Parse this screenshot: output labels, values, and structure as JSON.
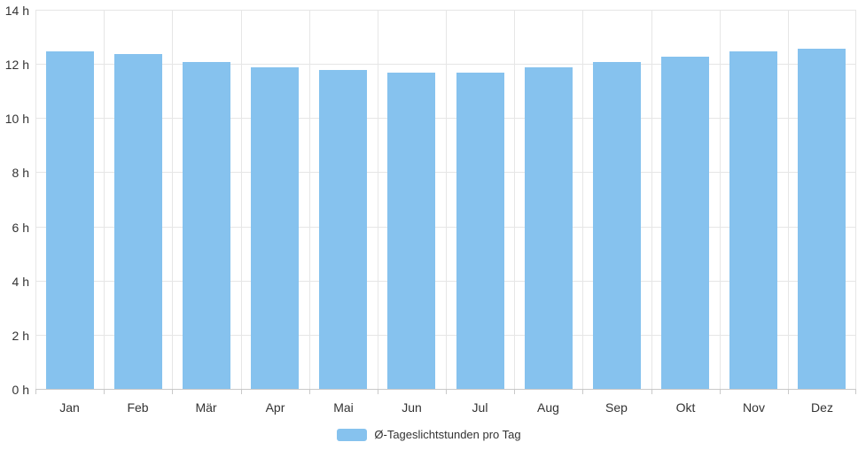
{
  "chart_data": {
    "type": "bar",
    "title": "",
    "xlabel": "",
    "ylabel": "",
    "categories": [
      "Jan",
      "Feb",
      "Mär",
      "Apr",
      "Mai",
      "Jun",
      "Jul",
      "Aug",
      "Sep",
      "Okt",
      "Nov",
      "Dez"
    ],
    "values": [
      12.5,
      12.4,
      12.1,
      11.9,
      11.8,
      11.7,
      11.7,
      11.9,
      12.1,
      12.3,
      12.5,
      12.6
    ],
    "series_name": "Ø-Tageslichtstunden pro Tag",
    "unit": "h",
    "ylim": [
      0,
      14
    ],
    "y_tick_step": 2,
    "y_tick_labels": [
      "0 h",
      "2 h",
      "4 h",
      "6 h",
      "8 h",
      "10 h",
      "12 h",
      "14 h"
    ],
    "grid": true,
    "legend_position": "bottom-center",
    "colors": {
      "bar": "#86c2ee",
      "grid": "#e6e6e6",
      "axis_line": "#c9c9c9",
      "label_text": "#333333"
    }
  }
}
